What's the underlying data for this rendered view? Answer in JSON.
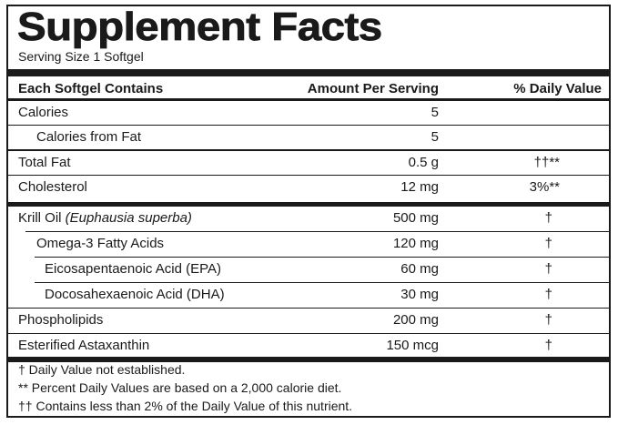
{
  "title": "Supplement Facts",
  "serving_size": "Serving Size 1 Softgel",
  "header": {
    "col1": "Each Softgel Contains",
    "col2": "Amount Per Serving",
    "col3": "% Daily Value"
  },
  "rows": [
    {
      "name": "Calories",
      "amount": "5",
      "dv": ""
    },
    {
      "name": "Calories from Fat",
      "amount": "5",
      "dv": ""
    },
    {
      "name": "Total Fat",
      "amount": "0.5 g",
      "dv": "††**"
    },
    {
      "name": "Cholesterol",
      "amount": "12 mg",
      "dv": "3%**"
    },
    {
      "name": "Krill Oil",
      "name_italic": "(Euphausia superba)",
      "amount": "500 mg",
      "dv": "†"
    },
    {
      "name": "Omega-3 Fatty Acids",
      "amount": "120 mg",
      "dv": "†"
    },
    {
      "name": "Eicosapentaenoic  Acid (EPA)",
      "amount": "60 mg",
      "dv": "†"
    },
    {
      "name": "Docosahexaenoic  Acid (DHA)",
      "amount": "30 mg",
      "dv": "†"
    },
    {
      "name": "Phospholipids",
      "amount": "200 mg",
      "dv": "†"
    },
    {
      "name": "Esterified Astaxanthin",
      "amount": "150 mcg",
      "dv": "†"
    }
  ],
  "footnotes": [
    "†  Daily Value not established.",
    "**  Percent Daily Values are based on a 2,000 calorie diet.",
    "†† Contains less than 2% of the Daily Value of this nutrient."
  ]
}
